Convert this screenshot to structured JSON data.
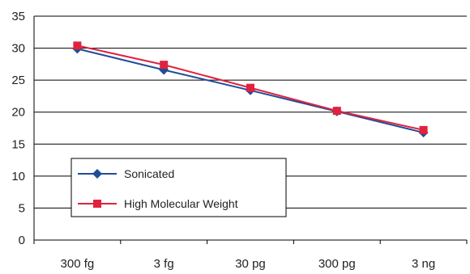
{
  "chart_data": {
    "type": "line",
    "categories": [
      "300 fg",
      "3 fg",
      "30 pg",
      "300 pg",
      "3 ng"
    ],
    "ylim": [
      0,
      35
    ],
    "yticks": [
      0,
      5,
      10,
      15,
      20,
      25,
      30,
      35
    ],
    "grid": true,
    "legend_position": "bottom-left",
    "series": [
      {
        "name": "Sonicated",
        "values": [
          29.9,
          26.6,
          23.4,
          20.1,
          16.8
        ],
        "color": "#1f4e99",
        "marker": "diamond"
      },
      {
        "name": "High Molecular Weight",
        "values": [
          30.4,
          27.4,
          23.8,
          20.2,
          17.2
        ],
        "color": "#e0223f",
        "marker": "square"
      }
    ]
  }
}
